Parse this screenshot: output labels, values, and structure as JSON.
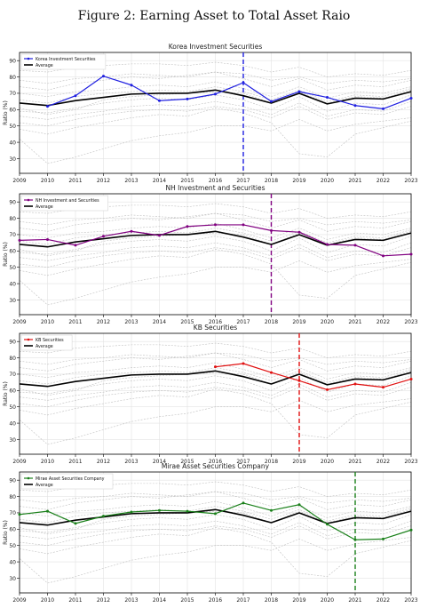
{
  "figure": {
    "title": "Figure 2: Earning Asset to Total Asset Raio"
  },
  "chart_data": [
    {
      "type": "line",
      "title": "Korea Investment Securities",
      "xlabel": "",
      "ylabel": "Ratio (%)",
      "x": [
        2009,
        2010,
        2011,
        2012,
        2013,
        2014,
        2015,
        2016,
        2017,
        2018,
        2019,
        2020,
        2021,
        2022,
        2023
      ],
      "xlim": [
        2009,
        2023
      ],
      "ylim": [
        21,
        95
      ],
      "yticks": [
        30,
        40,
        50,
        60,
        70,
        80,
        90
      ],
      "grid": true,
      "legend_position": "top-left",
      "vline_x": 2017,
      "series": [
        {
          "name": "Korea Investment Securities",
          "color": "#1f1fe0",
          "values": [
            null,
            62,
            68.5,
            80.5,
            75,
            65.5,
            66.5,
            69.5,
            76.5,
            65,
            71,
            67.5,
            62.5,
            60.5,
            67
          ]
        },
        {
          "name": "Average",
          "color": "#000000",
          "values": [
            64,
            62.5,
            65.5,
            67.5,
            69.5,
            70,
            70,
            72,
            68.5,
            64,
            70,
            63.5,
            67,
            66.5,
            71
          ]
        }
      ]
    },
    {
      "type": "line",
      "title": "NH Investment and Securities",
      "xlabel": "",
      "ylabel": "Ratio (%)",
      "x": [
        2009,
        2010,
        2011,
        2012,
        2013,
        2014,
        2015,
        2016,
        2017,
        2018,
        2019,
        2020,
        2021,
        2022,
        2023
      ],
      "xlim": [
        2009,
        2023
      ],
      "ylim": [
        21,
        95
      ],
      "yticks": [
        30,
        40,
        50,
        60,
        70,
        80,
        90
      ],
      "grid": true,
      "legend_position": "top-left",
      "vline_x": 2018,
      "series": [
        {
          "name": "NH Investment and Securities",
          "color": "#800080",
          "values": [
            66.5,
            67,
            63.5,
            69,
            72,
            69.5,
            75,
            76,
            76,
            72.5,
            71.5,
            64,
            63.5,
            57,
            58
          ]
        },
        {
          "name": "Average",
          "color": "#000000",
          "values": [
            64,
            62.5,
            65.5,
            67.5,
            69.5,
            70,
            70,
            72,
            68.5,
            64,
            70,
            63.5,
            67,
            66.5,
            71
          ]
        }
      ]
    },
    {
      "type": "line",
      "title": "KB Securities",
      "xlabel": "",
      "ylabel": "Ratio (%)",
      "x": [
        2009,
        2010,
        2011,
        2012,
        2013,
        2014,
        2015,
        2016,
        2017,
        2018,
        2019,
        2020,
        2021,
        2022,
        2023
      ],
      "xlim": [
        2009,
        2023
      ],
      "ylim": [
        21,
        95
      ],
      "yticks": [
        30,
        40,
        50,
        60,
        70,
        80,
        90
      ],
      "grid": true,
      "legend_position": "top-left",
      "vline_x": 2019,
      "series": [
        {
          "name": "KB Securities",
          "color": "#e01010",
          "values": [
            null,
            null,
            null,
            null,
            null,
            null,
            null,
            74.5,
            76.5,
            71,
            66,
            60.5,
            64,
            62,
            67
          ]
        },
        {
          "name": "Average",
          "color": "#000000",
          "values": [
            64,
            62.5,
            65.5,
            67.5,
            69.5,
            70,
            70,
            72,
            68.5,
            64,
            70,
            63.5,
            67,
            66.5,
            71
          ]
        }
      ]
    },
    {
      "type": "line",
      "title": "Mirae Asset Securities Company",
      "xlabel": "",
      "ylabel": "Ratio (%)",
      "x": [
        2009,
        2010,
        2011,
        2012,
        2013,
        2014,
        2015,
        2016,
        2017,
        2018,
        2019,
        2020,
        2021,
        2022,
        2023
      ],
      "xlim": [
        2009,
        2023
      ],
      "ylim": [
        21,
        95
      ],
      "yticks": [
        30,
        40,
        50,
        60,
        70,
        80,
        90
      ],
      "grid": true,
      "legend_position": "top-left",
      "vline_x": 2021,
      "series": [
        {
          "name": "Mirae Asset Securities Company",
          "color": "#1a801a",
          "values": [
            69,
            71,
            63.5,
            68,
            70.5,
            71.5,
            71,
            69.5,
            76,
            71.5,
            75,
            63,
            53.5,
            54,
            59.5
          ]
        },
        {
          "name": "Average",
          "color": "#000000",
          "values": [
            64,
            62.5,
            65.5,
            67.5,
            69.5,
            70,
            70,
            72,
            68.5,
            64,
            70,
            63.5,
            67,
            66.5,
            71
          ]
        }
      ]
    }
  ],
  "background_series": [
    [
      74,
      72,
      76,
      78,
      80,
      79,
      81,
      83,
      82,
      78,
      80,
      76,
      78,
      77,
      79
    ],
    [
      59,
      58,
      61,
      64,
      66,
      67,
      66,
      69,
      66,
      60,
      68,
      59,
      64,
      63,
      69
    ],
    [
      52,
      50,
      54,
      57,
      59,
      60,
      59,
      62,
      60,
      55,
      62,
      54,
      58,
      57,
      62
    ],
    [
      84,
      83,
      86,
      87,
      88,
      88,
      87,
      89,
      87,
      83,
      86,
      80,
      82,
      81,
      84
    ],
    [
      42,
      27,
      31,
      36,
      41,
      44,
      46,
      50,
      50,
      47,
      54,
      47,
      51,
      53,
      55
    ],
    [
      70,
      68,
      71,
      72,
      74,
      75,
      74,
      77,
      73,
      68,
      74,
      67,
      71,
      70,
      74
    ],
    [
      61,
      57,
      60,
      66,
      68,
      69,
      70,
      71,
      70,
      64,
      71,
      64,
      68,
      67,
      72
    ],
    [
      48,
      45,
      49,
      52,
      55,
      57,
      56,
      61,
      58,
      52,
      33,
      31,
      45,
      49,
      53
    ],
    [
      66,
      64,
      68,
      70,
      71,
      72,
      71,
      74,
      71,
      66,
      72,
      65,
      69,
      68,
      73
    ],
    [
      56,
      54,
      57,
      59,
      62,
      63,
      62,
      65,
      62,
      57,
      64,
      56,
      60,
      59,
      65
    ],
    [
      78,
      76,
      79,
      80,
      82,
      81,
      80,
      83,
      79,
      74,
      79,
      72,
      75,
      74,
      78
    ]
  ]
}
